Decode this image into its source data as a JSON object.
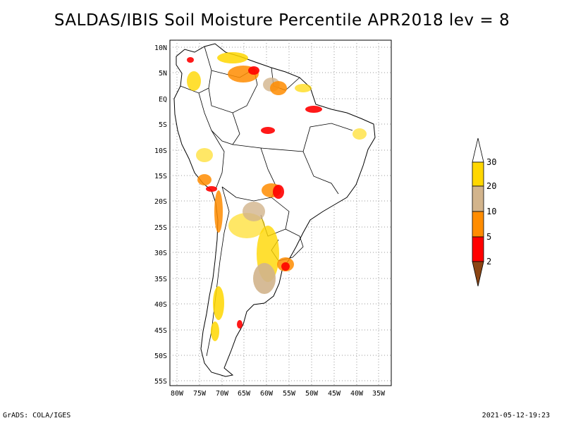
{
  "title": "SALDAS/IBIS Soil Moisture Percentile APR2018 lev = 8",
  "map": {
    "region": "South America",
    "lon_range": [
      -81,
      -32
    ],
    "lat_range": [
      -56,
      12
    ],
    "x_ticks": [
      "80W",
      "75W",
      "70W",
      "65W",
      "60W",
      "55W",
      "50W",
      "45W",
      "40W",
      "35W"
    ],
    "y_ticks": [
      "10N",
      "5N",
      "EQ",
      "5S",
      "10S",
      "15S",
      "20S",
      "25S",
      "30S",
      "35S",
      "40S",
      "45S",
      "50S",
      "55S"
    ],
    "grid": true
  },
  "legend": {
    "labels": [
      "2",
      "5",
      "10",
      "20",
      "30"
    ],
    "colors": {
      "below_2": "#8b4513",
      "2_5": "#ff0000",
      "5_10": "#ff8c00",
      "10_20": "#d2b48c",
      "20_30": "#ffd700",
      "above_30": "#ffffff"
    }
  },
  "footer": {
    "credit": "GrADS: COLA/IGES",
    "timestamp": "2021-05-12-19:23"
  }
}
